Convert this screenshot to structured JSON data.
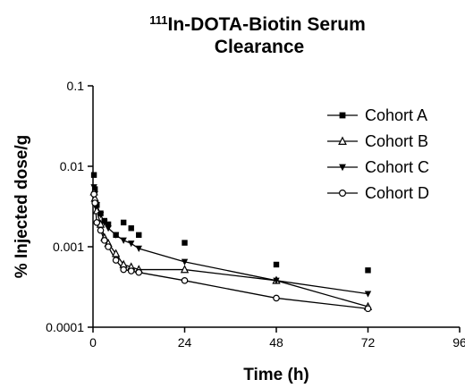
{
  "chart_data": {
    "type": "line",
    "title": {
      "superscript": "111",
      "line1": "In-DOTA-Biotin Serum",
      "line2": "Clearance"
    },
    "xlabel": "Time (h)",
    "ylabel": "% Injected dose/g",
    "xlim": [
      0,
      96
    ],
    "ylim": [
      0.0001,
      0.1
    ],
    "yscale": "log",
    "x_ticks": [
      0,
      24,
      48,
      72,
      96
    ],
    "x_tick_labels": [
      "0",
      "24",
      "48",
      "72",
      "96"
    ],
    "y_ticks": [
      0.0001,
      0.001,
      0.01,
      0.1
    ],
    "y_tick_labels": [
      "0.0001",
      "0.001",
      "0.01",
      "0.1"
    ],
    "grid": false,
    "legend": "right",
    "series": [
      {
        "name": "Cohort A",
        "marker": "filled-square",
        "line": false,
        "x": [
          0.25,
          0.5,
          1,
          2,
          3,
          4,
          6,
          8,
          10,
          12,
          24,
          48,
          72
        ],
        "y": [
          0.0078,
          0.0052,
          0.0033,
          0.0026,
          0.0021,
          0.0019,
          0.0014,
          0.002,
          0.0017,
          0.0014,
          0.00112,
          0.0006,
          0.00051
        ]
      },
      {
        "name": "Cohort B",
        "marker": "open-triangle-up",
        "line": true,
        "x": [
          0.25,
          0.5,
          1,
          2,
          3,
          4,
          6,
          8,
          10,
          12,
          24,
          48,
          72
        ],
        "y": [
          0.0048,
          0.004,
          0.0028,
          0.0019,
          0.0013,
          0.0011,
          0.00082,
          0.0006,
          0.00056,
          0.00052,
          0.00052,
          0.00038,
          0.00018
        ]
      },
      {
        "name": "Cohort C",
        "marker": "filled-triangle-down",
        "line": true,
        "x": [
          0.25,
          0.5,
          1,
          2,
          3,
          4,
          6,
          8,
          10,
          12,
          24,
          48,
          72
        ],
        "y": [
          0.0055,
          0.0045,
          0.0033,
          0.0025,
          0.002,
          0.0017,
          0.0014,
          0.0012,
          0.0011,
          0.00095,
          0.00065,
          0.00038,
          0.00026
        ]
      },
      {
        "name": "Cohort D",
        "marker": "open-circle",
        "line": true,
        "x": [
          0.25,
          0.5,
          1,
          2,
          3,
          4,
          6,
          8,
          10,
          12,
          24,
          48,
          72
        ],
        "y": [
          0.0045,
          0.0035,
          0.002,
          0.0016,
          0.0012,
          0.001,
          0.00068,
          0.00052,
          0.0005,
          0.00048,
          0.00038,
          0.00023,
          0.00017
        ]
      }
    ]
  }
}
